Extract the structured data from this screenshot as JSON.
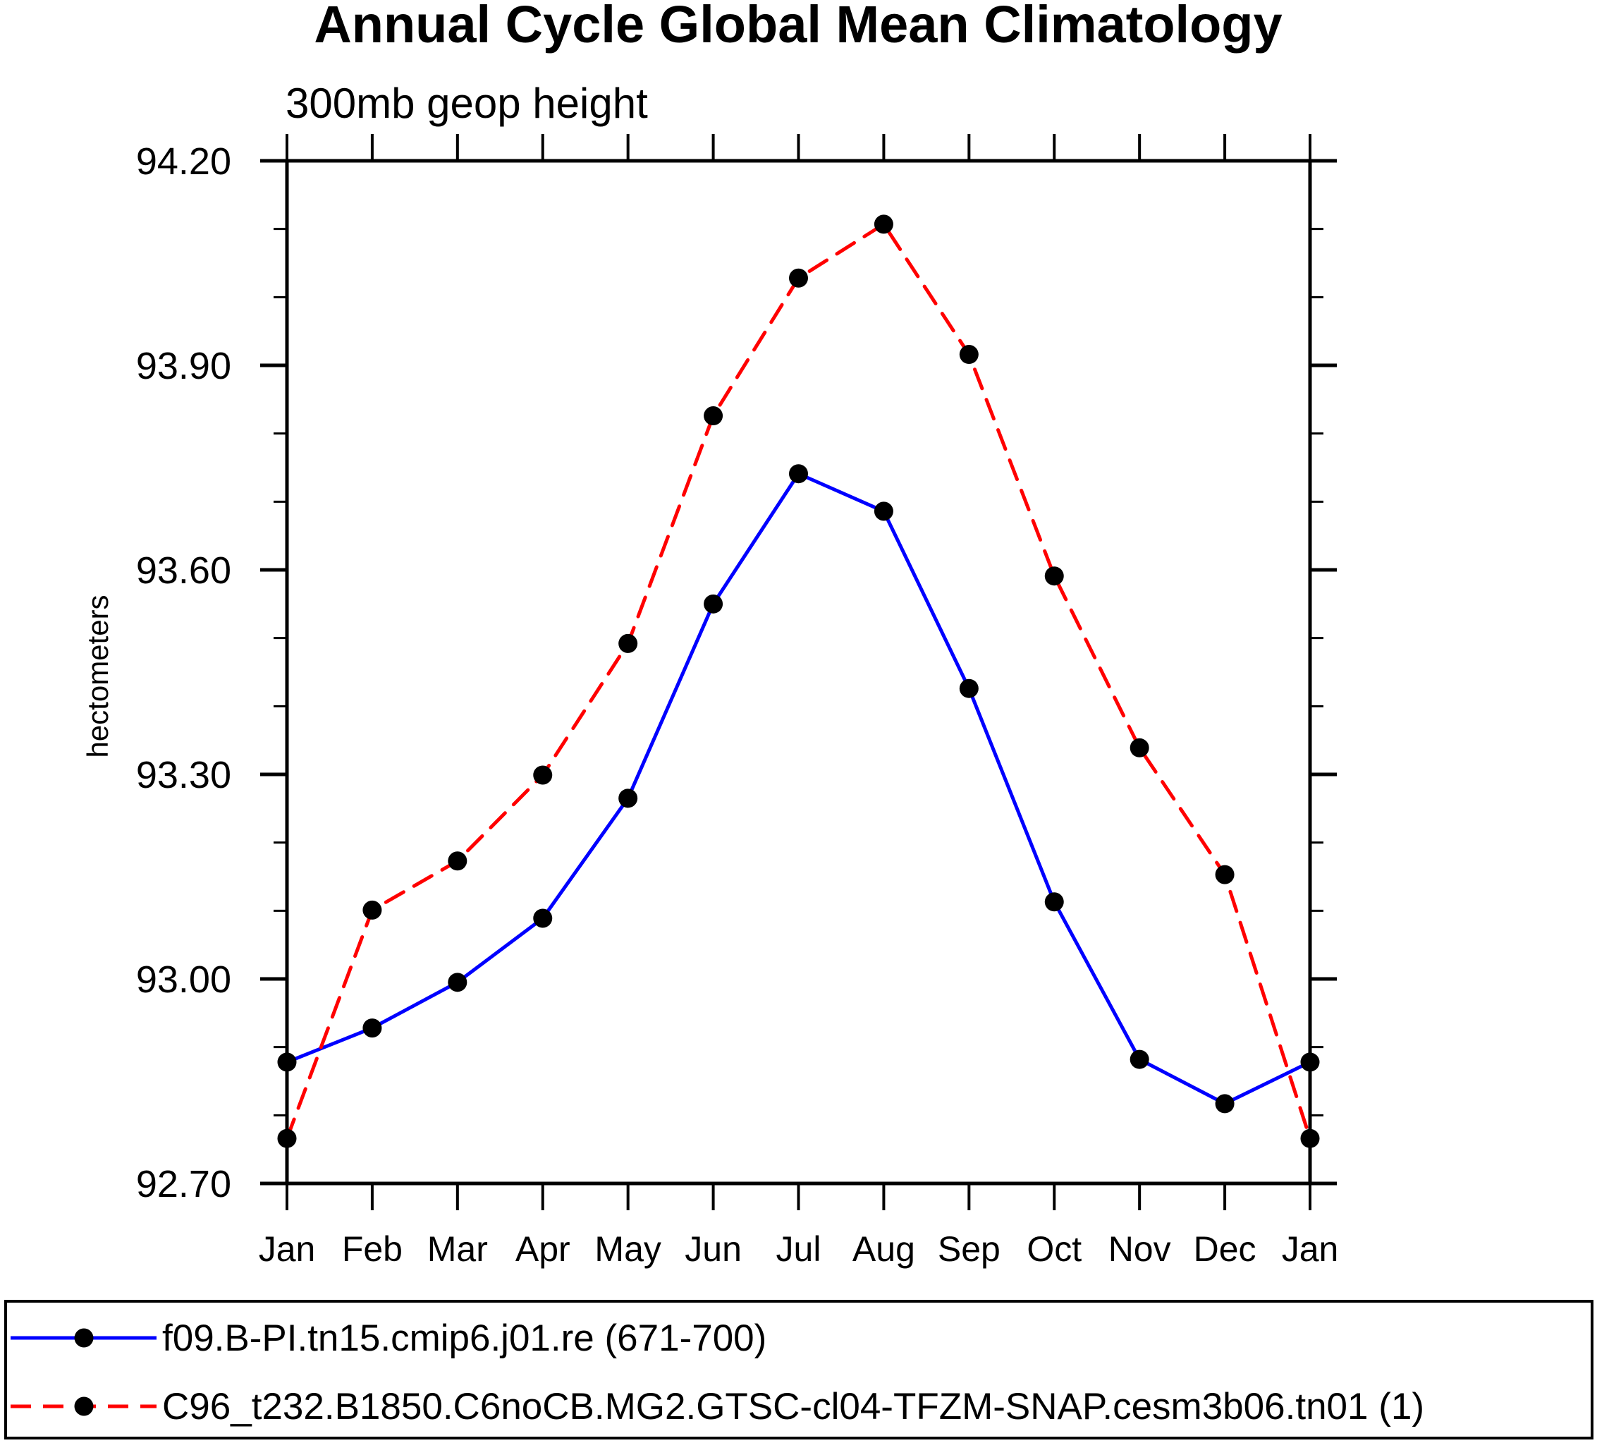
{
  "chart_data": {
    "type": "line",
    "title": "Annual Cycle Global Mean Climatology",
    "subtitle": "300mb geop height",
    "xlabel": "",
    "ylabel": "hectometers",
    "categories": [
      "Jan",
      "Feb",
      "Mar",
      "Apr",
      "May",
      "Jun",
      "Jul",
      "Aug",
      "Sep",
      "Oct",
      "Nov",
      "Dec",
      "Jan"
    ],
    "ylim": [
      92.7,
      94.2
    ],
    "yticks": [
      "92.70",
      "93.00",
      "93.30",
      "93.60",
      "93.90",
      "94.20"
    ],
    "ytick_values": [
      92.7,
      93.0,
      93.3,
      93.6,
      93.9,
      94.2
    ],
    "yminor_step": 0.1,
    "grid": false,
    "legend_position": "bottom",
    "series": [
      {
        "name": "f09.B-PI.tn15.cmip6.j01.re (671-700)",
        "color": "#0000ff",
        "line_style": "solid",
        "marker": "filled-circle",
        "marker_color": "#000000",
        "values": [
          92.878,
          92.928,
          92.995,
          93.089,
          93.265,
          93.55,
          93.741,
          93.686,
          93.426,
          93.113,
          92.882,
          92.817,
          92.878
        ]
      },
      {
        "name": "C96_t232.B1850.C6noCB.MG2.GTSC-cl04-TFZM-SNAP.cesm3b06.tn01 (1)",
        "color": "#ff0000",
        "line_style": "dashed",
        "marker": "filled-circle",
        "marker_color": "#000000",
        "values": [
          92.766,
          93.101,
          93.173,
          93.299,
          93.492,
          93.826,
          94.028,
          94.107,
          93.916,
          93.591,
          93.339,
          93.153,
          92.766
        ]
      }
    ]
  }
}
